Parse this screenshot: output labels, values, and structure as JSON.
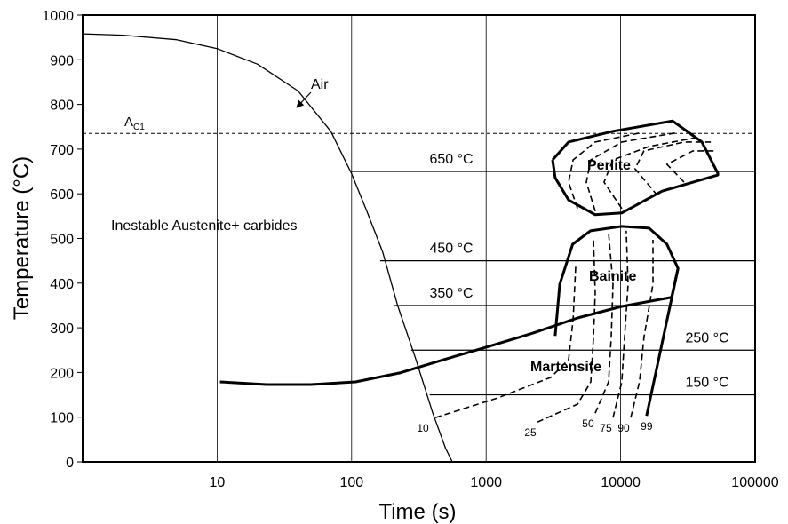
{
  "chart_data": {
    "type": "cct",
    "xlabel": "Time (s)",
    "ylabel": "Temperature (°C)",
    "xscale": "log",
    "xlim": [
      1,
      100000
    ],
    "ylim": [
      0,
      1000
    ],
    "xticks": [
      10,
      100,
      1000,
      10000,
      100000
    ],
    "yticks": [
      0,
      100,
      200,
      300,
      400,
      500,
      600,
      700,
      800,
      900,
      1000
    ],
    "grid_x": true,
    "cooling": {
      "name": "Air",
      "x": [
        1,
        2,
        5,
        10,
        20,
        40,
        70,
        100,
        130,
        170,
        220,
        300,
        400,
        500,
        560
      ],
      "values": [
        958,
        955,
        945,
        925,
        890,
        830,
        740,
        645,
        560,
        470,
        350,
        230,
        110,
        30,
        0
      ]
    },
    "ac1": {
      "label": "A",
      "sub": "C1",
      "value": 735
    },
    "region_label": "Inestable Austenite+ carbides",
    "isotherms": [
      {
        "label": "650 °C",
        "value": 650,
        "x": [
          100,
          100000
        ]
      },
      {
        "label": "450 °C",
        "value": 450,
        "x": [
          163,
          100000
        ]
      },
      {
        "label": "350 °C",
        "value": 350,
        "x": [
          205,
          100000
        ]
      },
      {
        "label": "250 °C",
        "value": 250,
        "x": [
          277,
          100000
        ]
      },
      {
        "label": "150 °C",
        "value": 150,
        "x": [
          380,
          100000
        ]
      }
    ],
    "regions": [
      {
        "name": "Perlite",
        "x": [
          3120,
          4100,
          8770,
          24300,
          40200,
          52800,
          52800,
          20300,
          10200,
          6470,
          4100,
          3260,
          3120
        ],
        "values": [
          676,
          716,
          740,
          763,
          716,
          646,
          642,
          606,
          557,
          553,
          586,
          636,
          676
        ]
      },
      {
        "name": "Bainite",
        "x": [
          3260,
          3530,
          4400,
          5960,
          10200,
          16300,
          22100,
          26700,
          23900
        ],
        "values": [
          282,
          398,
          487,
          517,
          527,
          523,
          487,
          433,
          368
        ]
      }
    ],
    "ms": {
      "name": "Martensite",
      "x": [
        10.5,
        23.3,
        49.8,
        107,
        228,
        488,
        1040,
        2230,
        4780,
        10200,
        23600
      ],
      "values": [
        179,
        173,
        173,
        179,
        199,
        229,
        258,
        288,
        322,
        348,
        368
      ]
    },
    "curves": [
      {
        "name": "10",
        "dashed": true,
        "x": [
          419,
          1217,
          3030,
          4100,
          4430,
          4630
        ],
        "values": [
          99,
          143,
          189,
          229,
          318,
          437
        ]
      },
      {
        "name": "25",
        "dashed": true,
        "x": [
          2410,
          4780,
          6000,
          6280,
          6470,
          6280
        ],
        "values": [
          89,
          129,
          179,
          278,
          378,
          497
        ]
      },
      {
        "name": "50",
        "dashed": true,
        "x": [
          6470,
          8130,
          8510,
          8770,
          8130
        ],
        "values": [
          109,
          179,
          278,
          398,
          513
        ]
      },
      {
        "name": "75",
        "dashed": true,
        "x": [
          8770,
          10200,
          10700,
          11360,
          11000
        ],
        "values": [
          99,
          179,
          278,
          398,
          517
        ]
      },
      {
        "name": "90",
        "dashed": true,
        "x": [
          11900,
          13800,
          14900,
          17400,
          17400
        ],
        "values": [
          99,
          179,
          278,
          398,
          497
        ]
      },
      {
        "name": "99",
        "dashed": false,
        "x": [
          15600,
          26700
        ],
        "values": [
          103,
          433
        ]
      }
    ],
    "perlite_curves": [
      {
        "x": [
          4780,
          4100,
          4430,
          6470,
          13800
        ],
        "values": [
          567,
          626,
          676,
          716,
          736
        ]
      },
      {
        "x": [
          6470,
          5560,
          6000,
          10200,
          25300
        ],
        "values": [
          561,
          626,
          676,
          716,
          736
        ]
      },
      {
        "x": [
          10200,
          7530,
          8770,
          16300,
          37000
        ],
        "values": [
          567,
          626,
          676,
          706,
          726
        ]
      },
      {
        "x": [
          18800,
          12800,
          14900,
          29600,
          46800
        ],
        "values": [
          596,
          656,
          696,
          716,
          716
        ]
      },
      {
        "x": [
          29600,
          22100,
          34500,
          50400
        ],
        "values": [
          626,
          666,
          696,
          696
        ]
      }
    ]
  }
}
